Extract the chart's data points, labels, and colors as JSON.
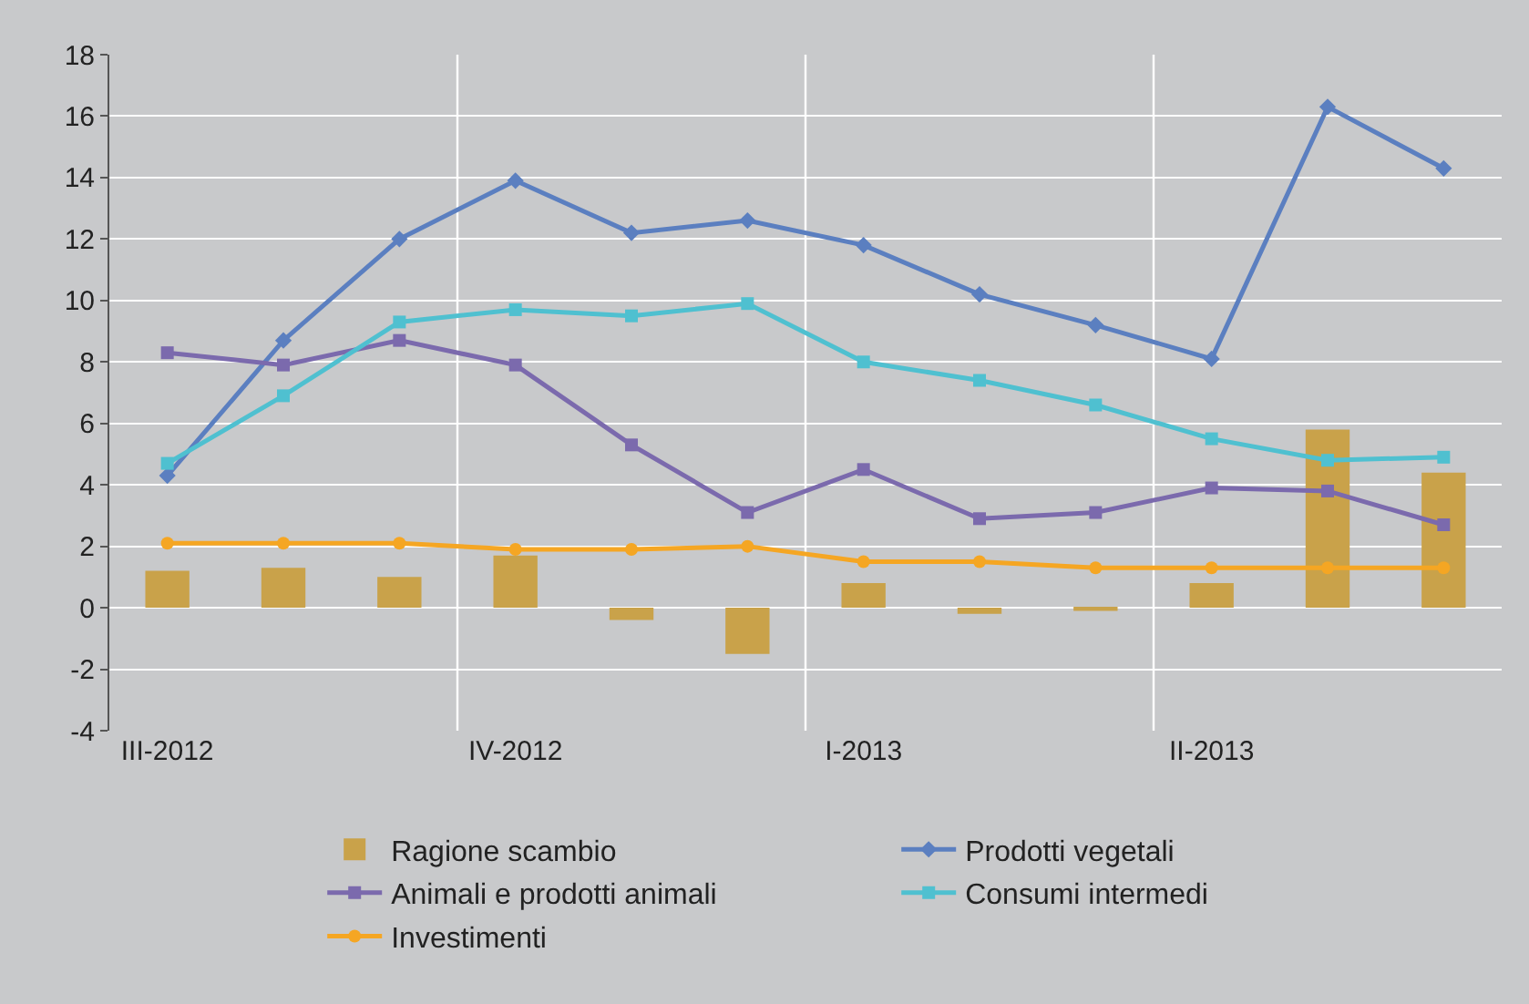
{
  "chart_data": {
    "type": "line",
    "categories": [
      "III-2012",
      null,
      null,
      "IV-2012",
      null,
      null,
      "I-2013",
      null,
      null,
      "II-2013",
      null,
      null
    ],
    "series": [
      {
        "name": "Ragione scambio",
        "type": "bar",
        "color": "#c9a24a",
        "values": [
          1.2,
          1.3,
          1.0,
          1.7,
          -0.4,
          -1.5,
          0.8,
          -0.2,
          -0.1,
          0.8,
          5.8,
          4.4
        ]
      },
      {
        "name": "Prodotti vegetali",
        "color": "#5b7fc0",
        "marker": "diamond",
        "values": [
          4.3,
          8.7,
          12.0,
          13.9,
          12.2,
          12.6,
          11.8,
          10.2,
          9.2,
          8.1,
          16.3,
          14.3
        ]
      },
      {
        "name": "Animali e prodotti animali",
        "color": "#7b6aad",
        "marker": "square",
        "values": [
          8.3,
          7.9,
          8.7,
          7.9,
          5.3,
          3.1,
          4.5,
          2.9,
          3.1,
          3.9,
          3.8,
          2.7
        ]
      },
      {
        "name": "Consumi intermedi",
        "color": "#4fc0d0",
        "marker": "square",
        "values": [
          4.7,
          6.9,
          9.3,
          9.7,
          9.5,
          9.9,
          8.0,
          7.4,
          6.6,
          5.5,
          4.8,
          4.9
        ]
      },
      {
        "name": "Investimenti",
        "color": "#f5a623",
        "marker": "circle",
        "values": [
          2.1,
          2.1,
          2.1,
          1.9,
          1.9,
          2.0,
          1.5,
          1.5,
          1.3,
          1.3,
          1.3,
          1.3
        ]
      }
    ],
    "ylim": [
      -4,
      18
    ],
    "yticks": [
      -4,
      -2,
      0,
      2,
      4,
      6,
      8,
      10,
      12,
      14,
      16,
      18
    ],
    "grid": true,
    "legend": "bottom"
  }
}
